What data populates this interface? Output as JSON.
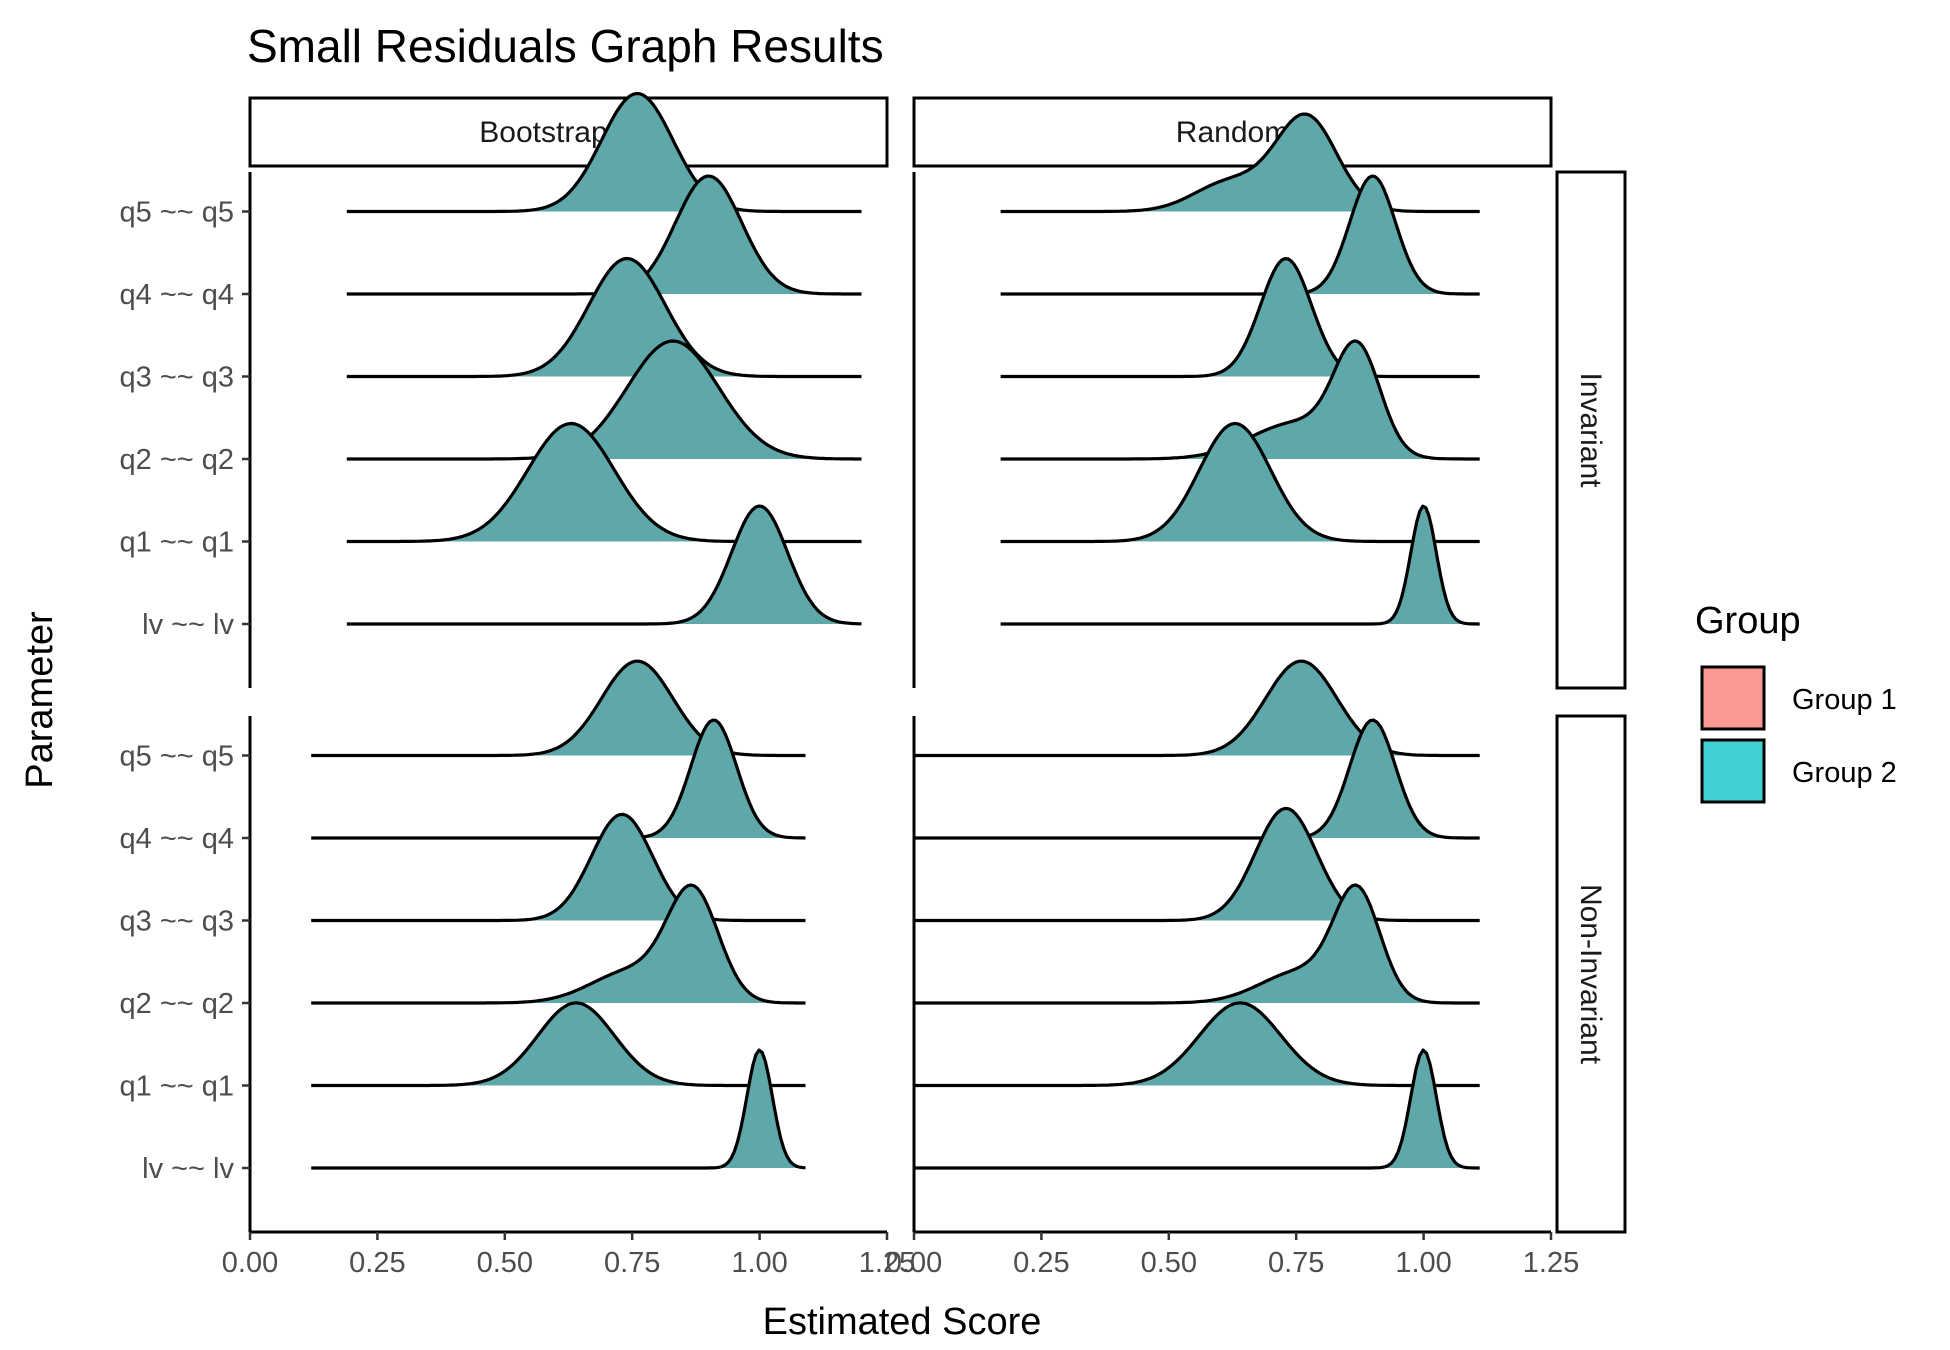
{
  "chart_data": {
    "type": "ridgeline-density",
    "title": "Small Residuals Graph Results",
    "xlabel": "Estimated Score",
    "ylabel": "Parameter",
    "xlim": [
      0.0,
      1.25
    ],
    "x_ticks": [
      "0.00",
      "0.25",
      "0.50",
      "0.75",
      "1.00",
      "1.25"
    ],
    "columns": [
      "Bootstrapped",
      "Random"
    ],
    "rows": [
      "Invariant",
      "Non-Invariant"
    ],
    "parameters": [
      "lv ~~ lv",
      "q1 ~~ q1",
      "q2 ~~ q2",
      "q3 ~~ q3",
      "q4 ~~ q4",
      "q5 ~~ q5"
    ],
    "legend": {
      "title": "Group",
      "position": "right",
      "entries": [
        {
          "name": "Group 1",
          "color": "#F8766D"
        },
        {
          "name": "Group 2",
          "color": "#00BFC4"
        }
      ]
    },
    "fill_color": "#5FA8A9",
    "panels": [
      {
        "column": "Bootstrapped",
        "row": "Invariant",
        "range": [
          0.19,
          1.2
        ],
        "densities": {
          "lv ~~ lv": [
            {
              "mean": 1.0,
              "sd": 0.055,
              "w": 1.0
            }
          ],
          "q1 ~~ q1": [
            {
              "mean": 0.63,
              "sd": 0.085,
              "w": 1.0
            }
          ],
          "q2 ~~ q2": [
            {
              "mean": 0.83,
              "sd": 0.09,
              "w": 1.0
            }
          ],
          "q3 ~~ q3": [
            {
              "mean": 0.74,
              "sd": 0.075,
              "w": 1.0
            }
          ],
          "q4 ~~ q4": [
            {
              "mean": 0.9,
              "sd": 0.065,
              "w": 1.0
            }
          ],
          "q5 ~~ q5": [
            {
              "mean": 0.76,
              "sd": 0.07,
              "w": 1.0
            }
          ]
        }
      },
      {
        "column": "Random",
        "row": "Invariant",
        "range": [
          0.17,
          1.11
        ],
        "densities": {
          "lv ~~ lv": [
            {
              "mean": 1.0,
              "sd": 0.025,
              "w": 1.0
            }
          ],
          "q1 ~~ q1": [
            {
              "mean": 0.63,
              "sd": 0.07,
              "w": 1.0
            }
          ],
          "q2 ~~ q2": [
            {
              "mean": 0.87,
              "sd": 0.045,
              "w": 1.0
            },
            {
              "mean": 0.75,
              "sd": 0.09,
              "w": 0.35
            }
          ],
          "q3 ~~ q3": [
            {
              "mean": 0.73,
              "sd": 0.05,
              "w": 1.0
            }
          ],
          "q4 ~~ q4": [
            {
              "mean": 0.9,
              "sd": 0.045,
              "w": 1.0
            }
          ],
          "q5 ~~ q5": [
            {
              "mean": 0.77,
              "sd": 0.06,
              "w": 0.8
            },
            {
              "mean": 0.62,
              "sd": 0.07,
              "w": 0.25
            }
          ]
        }
      },
      {
        "column": "Bootstrapped",
        "row": "Non-Invariant",
        "range": [
          0.12,
          1.09
        ],
        "densities": {
          "lv ~~ lv": [
            {
              "mean": 1.0,
              "sd": 0.025,
              "w": 1.0
            }
          ],
          "q1 ~~ q1": [
            {
              "mean": 0.64,
              "sd": 0.075,
              "w": 0.7
            }
          ],
          "q2 ~~ q2": [
            {
              "mean": 0.87,
              "sd": 0.05,
              "w": 1.0
            },
            {
              "mean": 0.75,
              "sd": 0.08,
              "w": 0.3
            }
          ],
          "q3 ~~ q3": [
            {
              "mean": 0.73,
              "sd": 0.06,
              "w": 0.9
            }
          ],
          "q4 ~~ q4": [
            {
              "mean": 0.91,
              "sd": 0.045,
              "w": 1.0
            }
          ],
          "q5 ~~ q5": [
            {
              "mean": 0.76,
              "sd": 0.07,
              "w": 0.8
            }
          ]
        }
      },
      {
        "column": "Random",
        "row": "Non-Invariant",
        "range": [
          0.0,
          1.11
        ],
        "densities": {
          "lv ~~ lv": [
            {
              "mean": 1.0,
              "sd": 0.025,
              "w": 1.0
            }
          ],
          "q1 ~~ q1": [
            {
              "mean": 0.64,
              "sd": 0.08,
              "w": 0.7
            }
          ],
          "q2 ~~ q2": [
            {
              "mean": 0.87,
              "sd": 0.045,
              "w": 1.0
            },
            {
              "mean": 0.76,
              "sd": 0.08,
              "w": 0.3
            }
          ],
          "q3 ~~ q3": [
            {
              "mean": 0.73,
              "sd": 0.06,
              "w": 0.95
            }
          ],
          "q4 ~~ q4": [
            {
              "mean": 0.9,
              "sd": 0.045,
              "w": 1.0
            }
          ],
          "q5 ~~ q5": [
            {
              "mean": 0.76,
              "sd": 0.07,
              "w": 0.8
            }
          ]
        }
      }
    ]
  }
}
